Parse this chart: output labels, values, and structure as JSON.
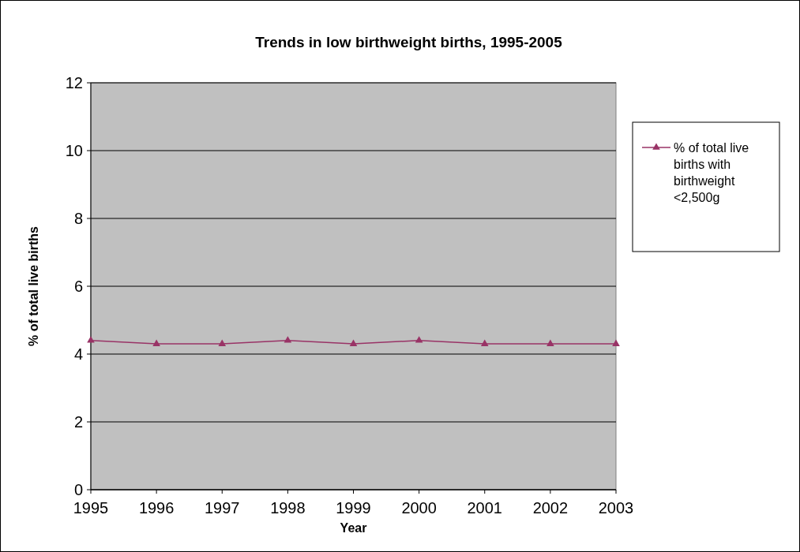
{
  "chart_data": {
    "type": "line",
    "title": "Trends in low birthweight births, 1995-2005",
    "xlabel": "Year",
    "ylabel": "% of total live births",
    "x": [
      1995,
      1996,
      1997,
      1998,
      1999,
      2000,
      2001,
      2002,
      2003
    ],
    "series": [
      {
        "name": "% of total live births with birthweight <2,500g",
        "color": "#993366",
        "values": [
          4.4,
          4.3,
          4.3,
          4.4,
          4.3,
          4.4,
          4.3,
          4.3,
          4.3
        ]
      }
    ],
    "xlim": [
      1995,
      2003
    ],
    "xticks": [
      1995,
      1996,
      1997,
      1998,
      1999,
      2000,
      2001,
      2002,
      2003
    ],
    "ylim": [
      0,
      12
    ],
    "yticks": [
      0,
      2,
      4,
      6,
      8,
      10,
      12
    ],
    "grid": "y",
    "legend": "right",
    "marker": "triangle",
    "line_style": "solid"
  }
}
